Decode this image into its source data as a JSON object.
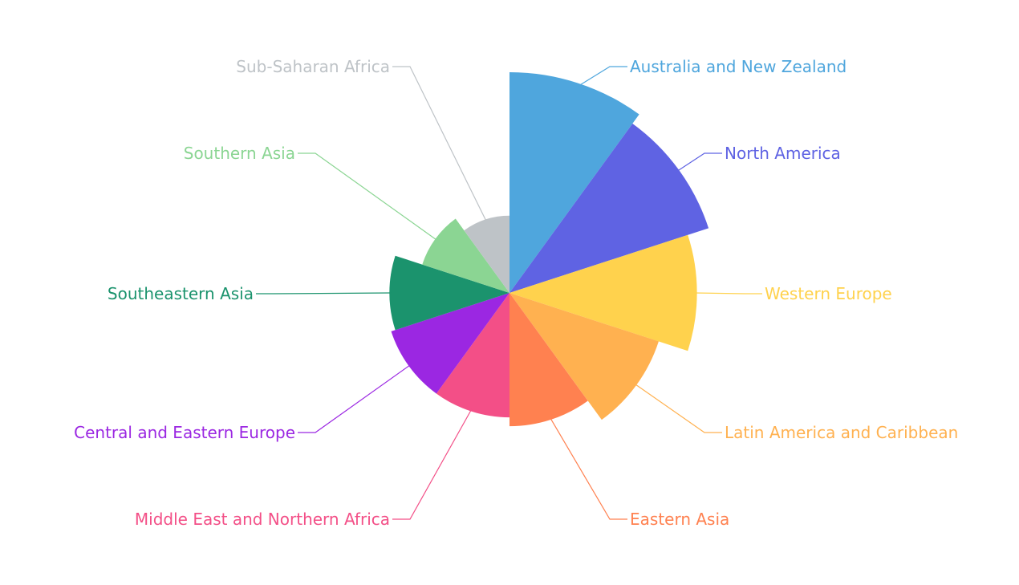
{
  "chart_data": {
    "type": "pie",
    "subtype": "nightingale-rose",
    "title": "",
    "series": [
      {
        "name": "",
        "data": [
          {
            "label": "Australia and New Zealand",
            "value": 7.3,
            "color": "#4fa6dd"
          },
          {
            "label": "North America",
            "value": 7.1,
            "color": "#5f63e3"
          },
          {
            "label": "Western Europe",
            "value": 6.7,
            "color": "#ffd24d"
          },
          {
            "label": "Latin America and Caribbean",
            "value": 6.1,
            "color": "#ffb150"
          },
          {
            "label": "Eastern Asia",
            "value": 5.6,
            "color": "#ff8150"
          },
          {
            "label": "Middle East and Northern Africa",
            "value": 5.4,
            "color": "#f34f87"
          },
          {
            "label": "Central and Eastern Europe",
            "value": 5.4,
            "color": "#9b27e2"
          },
          {
            "label": "Southeastern Asia",
            "value": 5.3,
            "color": "#1b936d"
          },
          {
            "label": "Southern Asia",
            "value": 4.6,
            "color": "#8bd593"
          },
          {
            "label": "Sub-Saharan Africa",
            "value": 4.2,
            "color": "#bec3c7"
          }
        ]
      }
    ],
    "legend": "none",
    "labels": "outside-with-leader-lines"
  }
}
